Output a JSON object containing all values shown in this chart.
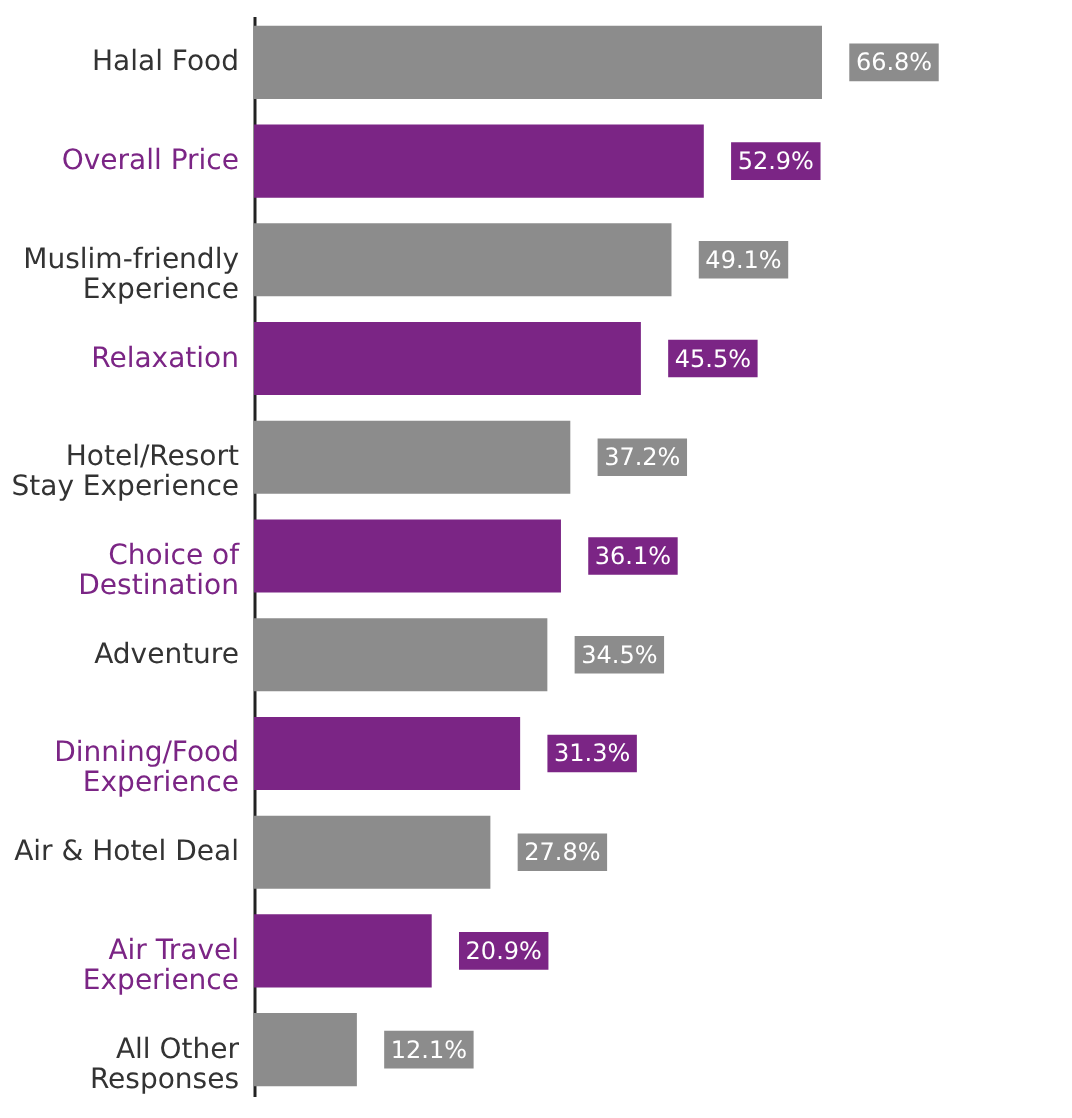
{
  "chart_data": {
    "type": "bar",
    "orientation": "horizontal",
    "categories": [
      "Halal Food",
      "Overall Price",
      "Muslim-friendly\nExperience",
      "Relaxation",
      "Hotel/Resort\nStay Experience",
      "Choice of\nDestination",
      "Adventure",
      "Dinning/Food\nExperience",
      "Air & Hotel Deal",
      "Air Travel\nExperience",
      "All Other\nResponses"
    ],
    "values": [
      66.8,
      52.9,
      49.1,
      45.5,
      37.2,
      36.1,
      34.5,
      31.3,
      27.8,
      20.9,
      12.1
    ],
    "colors": [
      "#8c8c8c",
      "#7b2585",
      "#8c8c8c",
      "#7b2585",
      "#8c8c8c",
      "#7b2585",
      "#8c8c8c",
      "#7b2585",
      "#8c8c8c",
      "#7b2585",
      "#8c8c8c"
    ],
    "value_labels": [
      "66.8%",
      "52.9%",
      "49.1%",
      "45.5%",
      "37.2%",
      "36.1%",
      "34.5%",
      "31.3%",
      "27.8%",
      "20.9%",
      "12.1%"
    ]
  }
}
